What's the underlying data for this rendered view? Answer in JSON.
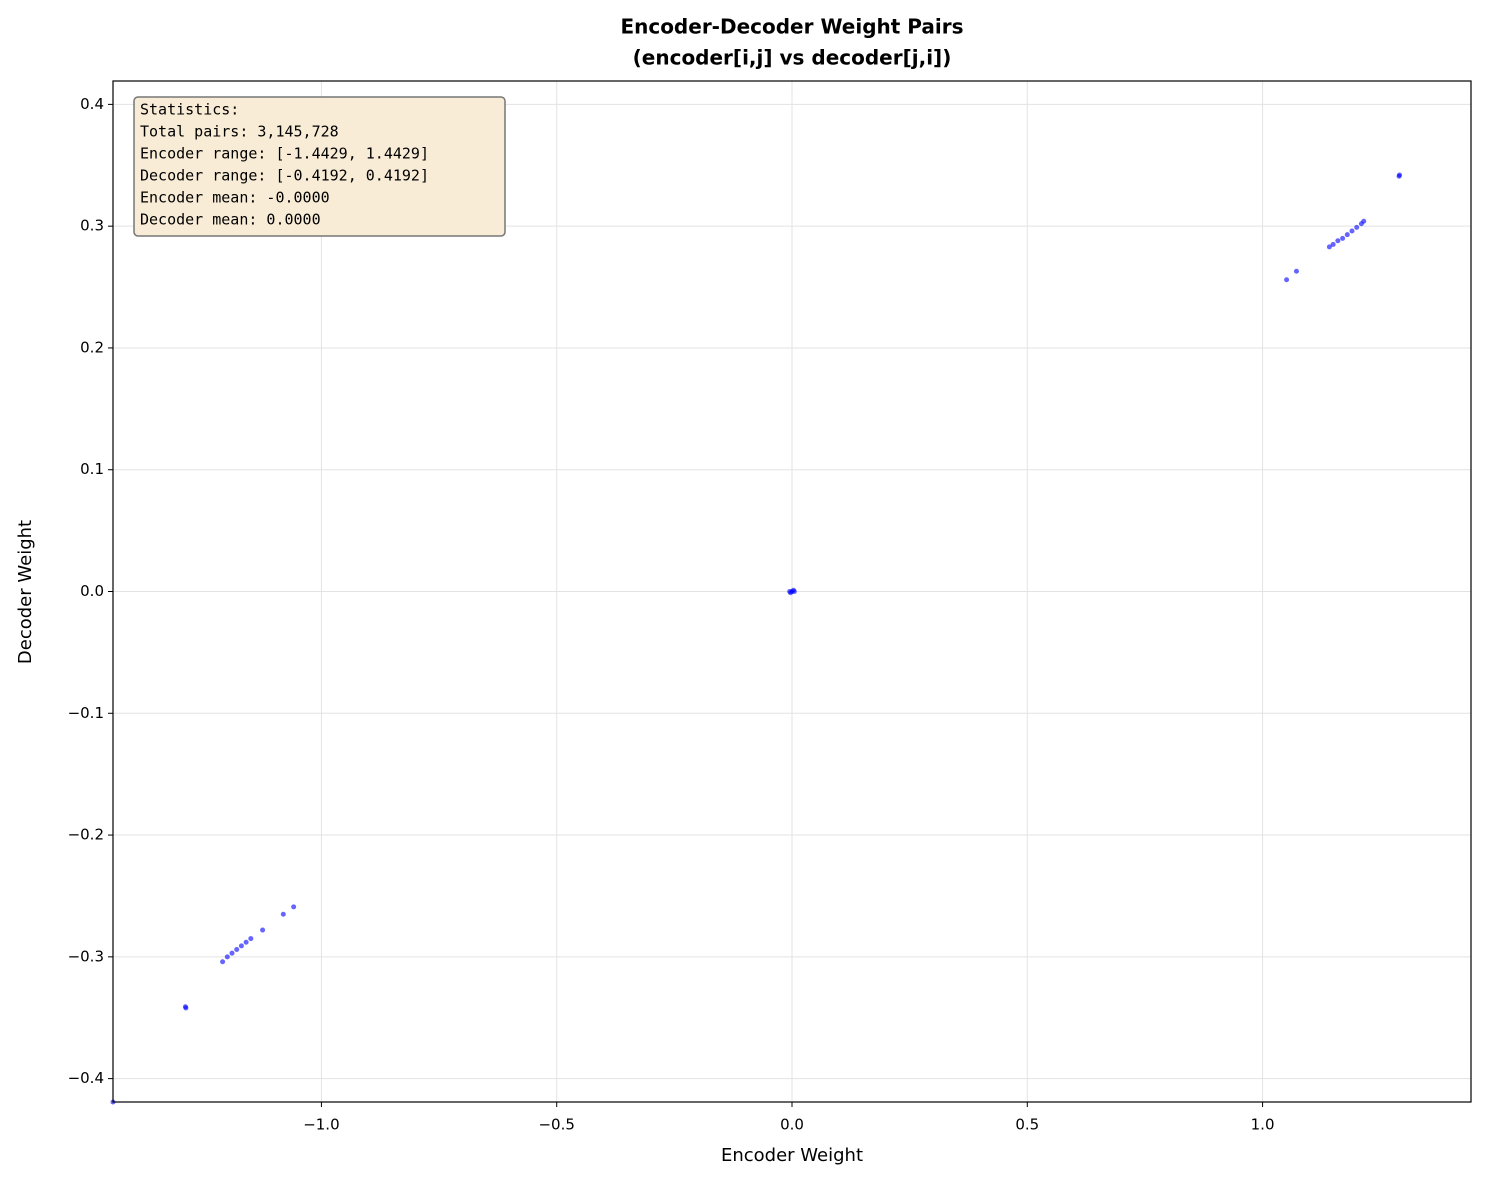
{
  "chart_data": {
    "type": "scatter",
    "title": "Encoder-Decoder Weight Pairs",
    "subtitle": "(encoder[i,j] vs decoder[j,i])",
    "x_label": "Encoder Weight",
    "y_label": "Decoder Weight",
    "annotation": [
      "Statistics:",
      "Total pairs: 3,145,728",
      "Encoder range: [-1.4429, 1.4429]",
      "Decoder range: [-0.4192, 0.4192]",
      "Encoder mean: -0.0000",
      "Decoder mean: 0.0000"
    ],
    "color": "#0000ff",
    "x": [
      0,
      0.005,
      -0.005,
      0.003,
      -0.003,
      1.291,
      1.29,
      1.142,
      1.15,
      1.16,
      1.17,
      1.18,
      1.19,
      1.2,
      1.21,
      1.215,
      1.051,
      1.072,
      -1.289,
      -1.288,
      -1.21,
      -1.2,
      -1.19,
      -1.18,
      -1.17,
      -1.16,
      -1.15,
      -1.125,
      -1.081,
      -1.059,
      -1.4429
    ],
    "values": [
      0,
      0,
      0,
      0.001,
      -0.001,
      0.342,
      0.341,
      0.283,
      0.285,
      0.288,
      0.29,
      0.293,
      0.296,
      0.299,
      0.302,
      0.304,
      0.256,
      0.263,
      -0.341,
      -0.342,
      -0.304,
      -0.3,
      -0.297,
      -0.294,
      -0.291,
      -0.288,
      -0.285,
      -0.278,
      -0.265,
      -0.259,
      -0.4192
    ],
    "xlim": [
      -1.4429,
      1.4429
    ],
    "ylim": [
      -0.4192,
      0.4192
    ],
    "xticks": [
      {
        "value": -1.0,
        "label": "−1.0"
      },
      {
        "value": -0.5,
        "label": "−0.5"
      },
      {
        "value": 0.0,
        "label": "0.0"
      },
      0.5,
      {
        "value": 1.0,
        "label": "1.0"
      }
    ],
    "yticks": [
      {
        "value": -0.4,
        "label": "−0.4"
      },
      {
        "value": -0.3,
        "label": "−0.3"
      },
      {
        "value": -0.2,
        "label": "−0.2"
      },
      {
        "value": -0.1,
        "label": "−0.1"
      },
      {
        "value": 0.0,
        "label": "0.0"
      },
      0.1,
      0.2,
      0.3,
      0.4
    ],
    "grid": true
  }
}
